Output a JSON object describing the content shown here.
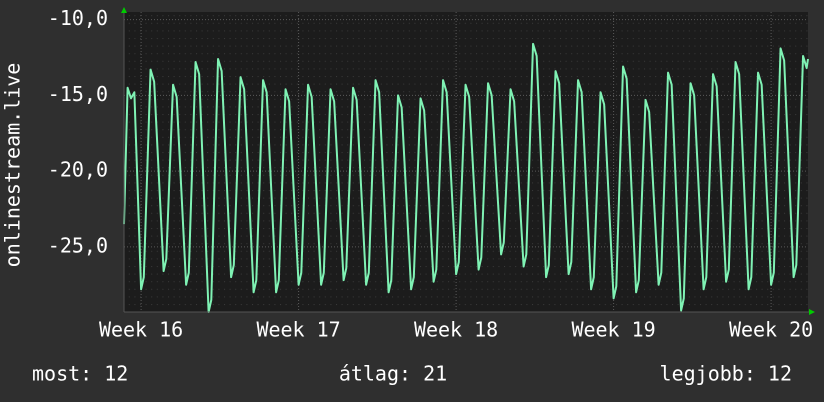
{
  "chart_data": {
    "type": "line",
    "y_label": "onlinestream.live",
    "x": [
      -0.76,
      -0.6,
      -0.45,
      -0.3,
      0,
      0.12,
      0.42,
      0.58,
      1,
      1.12,
      1.42,
      1.58,
      2,
      2.12,
      2.42,
      2.58,
      3,
      3.12,
      3.42,
      3.58,
      4,
      4.12,
      4.42,
      4.58,
      5,
      5.12,
      5.42,
      5.58,
      6,
      6.12,
      6.42,
      6.58,
      7,
      7.12,
      7.42,
      7.58,
      8,
      8.12,
      8.42,
      8.58,
      9,
      9.12,
      9.42,
      9.58,
      10,
      10.12,
      10.42,
      10.58,
      11,
      11.12,
      11.42,
      11.58,
      12,
      12.12,
      12.42,
      12.58,
      13,
      13.12,
      13.42,
      13.58,
      14,
      14.12,
      14.42,
      14.58,
      15,
      15.12,
      15.42,
      15.58,
      16,
      16.12,
      16.42,
      16.58,
      17,
      17.12,
      17.42,
      17.58,
      18,
      18.12,
      18.42,
      18.58,
      19,
      19.12,
      19.42,
      19.58,
      20,
      20.12,
      20.42,
      20.58,
      21,
      21.12,
      21.42,
      21.58,
      22,
      22.12,
      22.42,
      22.58,
      23,
      23.12,
      23.42,
      23.58,
      24,
      24.12,
      24.42,
      24.58,
      25,
      25.12,
      25.42,
      25.58,
      26,
      26.12,
      26.42,
      26.58,
      27,
      27.12,
      27.42,
      27.58,
      28,
      28.12,
      28.42,
      28.58,
      29,
      29.12,
      29.42,
      29.58,
      29.64
    ],
    "series": [
      {
        "name": "onlinestream.live",
        "color": "#7ff2b4",
        "values": [
          -23.5,
          -14.5,
          -15.2,
          -14.8,
          -27.8,
          -27.0,
          -13.3,
          -14.1,
          -26.6,
          -25.8,
          -14.3,
          -15.1,
          -27.5,
          -26.7,
          -12.8,
          -13.6,
          -29.3,
          -28.5,
          -12.6,
          -13.4,
          -27.0,
          -26.2,
          -13.8,
          -14.6,
          -28.0,
          -27.2,
          -14.0,
          -14.8,
          -28.0,
          -27.2,
          -14.6,
          -15.4,
          -27.5,
          -26.7,
          -14.3,
          -15.1,
          -27.5,
          -26.7,
          -14.6,
          -15.4,
          -27.2,
          -26.4,
          -14.5,
          -15.3,
          -27.5,
          -26.7,
          -14.0,
          -14.8,
          -28.0,
          -27.2,
          -15.0,
          -15.8,
          -27.8,
          -27.0,
          -15.2,
          -16.0,
          -27.3,
          -26.5,
          -14.0,
          -14.8,
          -26.8,
          -26.0,
          -14.3,
          -15.1,
          -26.5,
          -25.7,
          -14.2,
          -15.0,
          -25.5,
          -24.7,
          -14.6,
          -15.4,
          -26.3,
          -25.5,
          -11.6,
          -12.4,
          -27.0,
          -26.2,
          -13.4,
          -14.2,
          -26.8,
          -26.0,
          -14.0,
          -14.8,
          -27.8,
          -27.0,
          -14.8,
          -15.6,
          -28.4,
          -27.6,
          -13.1,
          -13.9,
          -28.0,
          -27.2,
          -15.3,
          -16.1,
          -27.5,
          -26.7,
          -13.5,
          -14.3,
          -29.2,
          -28.4,
          -14.2,
          -15.0,
          -27.8,
          -27.0,
          -13.6,
          -14.4,
          -27.3,
          -26.5,
          -12.8,
          -13.6,
          -27.8,
          -27.0,
          -13.5,
          -14.3,
          -27.5,
          -26.7,
          -11.9,
          -12.7,
          -27.0,
          -26.2,
          -12.4,
          -13.2,
          -12.6
        ]
      }
    ],
    "xlim": [
      -0.76,
      29.64
    ],
    "xticks": [
      {
        "value": 0,
        "label": "Week 16"
      },
      {
        "value": 7,
        "label": "Week 17"
      },
      {
        "value": 14,
        "label": "Week 18"
      },
      {
        "value": 21,
        "label": "Week 19"
      },
      {
        "value": 28,
        "label": "Week 20"
      }
    ],
    "ylim": [
      -29.3,
      -9.5
    ],
    "yticks": [
      {
        "value": -10,
        "label": "-10,0"
      },
      {
        "value": -15,
        "label": "-15,0"
      },
      {
        "value": -20,
        "label": "-20,0"
      },
      {
        "value": -25,
        "label": "-25,0"
      }
    ],
    "grid": true,
    "footer": [
      "most: 12",
      "átlag: 21",
      "legjobb: 12"
    ]
  }
}
